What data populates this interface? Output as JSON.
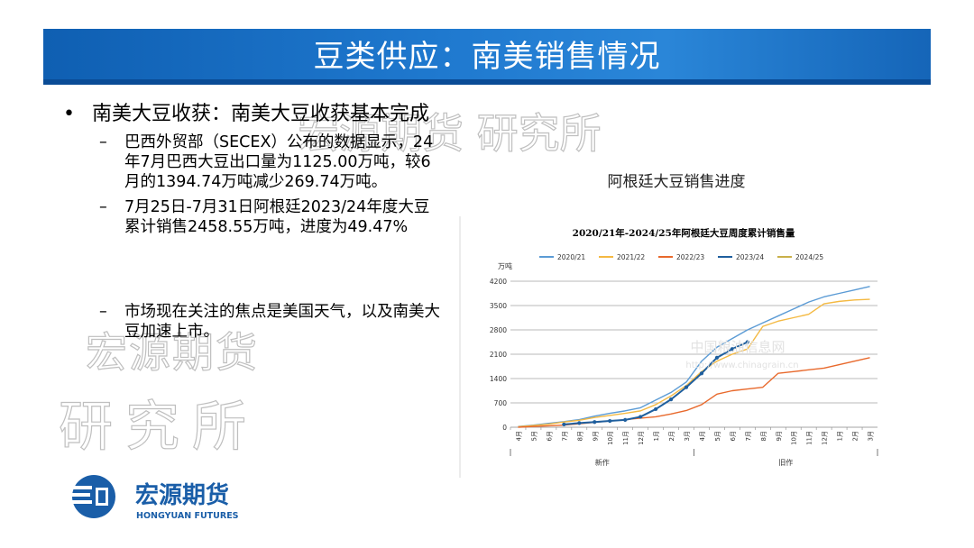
{
  "slide": {
    "title": "豆类供应：南美销售情况",
    "bullets": [
      {
        "marker": "•",
        "text": "南美大豆收获：南美大豆收获基本完成"
      },
      {
        "marker": "–",
        "text": "巴西外贸部（SECEX）公布的数据显示，24年7月巴西大豆出口量为1125.00万吨，较6月的1394.74万吨减少269.74万吨。"
      },
      {
        "marker": "–",
        "text": "7月25日-7月31日阿根廷2023/24年度大豆累计销售2458.55万吨，进度为49.47%"
      },
      {
        "marker": "–",
        "text": "市场现在关注的焦点是美国天气，以及南美大豆加速上市。"
      }
    ],
    "chart_caption": "阿根廷大豆销售进度"
  },
  "watermarks": {
    "top": "宏源期货 研究所",
    "left_line1": "宏源期货",
    "left_line2": "研究所",
    "chart_brand": "中国粮油信息网",
    "chart_url": "http://www.chinagrain.cn"
  },
  "logo": {
    "cn": "宏源期货",
    "en": "HONGYUAN FUTURES",
    "color": "#1a5ea8"
  },
  "chart_data": {
    "type": "line",
    "title": "2020/21年-2024/25年阿根廷大豆周度累计销售量",
    "ylabel": "万吨",
    "ylim": [
      0,
      4200
    ],
    "yticks": [
      0,
      700,
      1400,
      2100,
      2800,
      3500,
      4200
    ],
    "x": [
      "4月",
      "5月",
      "6月",
      "7月",
      "8月",
      "9月",
      "10月",
      "11月",
      "12月",
      "1月",
      "2月",
      "3月",
      "4月",
      "5月",
      "6月",
      "7月",
      "8月",
      "9月",
      "10月",
      "11月",
      "12月",
      "1月",
      "2月",
      "3月"
    ],
    "x_groups": [
      {
        "label": "新作"
      },
      {
        "label": "旧作"
      }
    ],
    "grid": true,
    "legend_position": "top",
    "series": [
      {
        "name": "2020/21",
        "color": "#5b9bd5",
        "values": [
          20,
          60,
          110,
          160,
          220,
          320,
          400,
          470,
          560,
          780,
          1000,
          1300,
          1900,
          2300,
          2550,
          2800,
          3000,
          3200,
          3400,
          3600,
          3750,
          3850,
          3950,
          4050
        ]
      },
      {
        "name": "2021/22",
        "color": "#f4b942",
        "values": [
          15,
          50,
          90,
          150,
          200,
          280,
          340,
          400,
          470,
          650,
          900,
          1200,
          1600,
          1900,
          2100,
          2250,
          2900,
          3050,
          3150,
          3250,
          3550,
          3620,
          3660,
          3680
        ]
      },
      {
        "name": "2022/23",
        "color": "#e8692c",
        "values": [
          0,
          20,
          40,
          60,
          100,
          140,
          180,
          220,
          260,
          300,
          380,
          480,
          650,
          950,
          1050,
          1100,
          1150,
          1550,
          1600,
          1650,
          1700,
          1800,
          1900,
          2000
        ]
      },
      {
        "name": "2023/24",
        "color": "#1f5f9e",
        "values": [
          null,
          null,
          null,
          80,
          120,
          150,
          180,
          210,
          300,
          520,
          800,
          1150,
          1550,
          2000,
          2250,
          2450,
          null,
          null,
          null,
          null,
          null,
          null,
          null,
          null
        ]
      },
      {
        "name": "2024/25",
        "color": "#c9b04a",
        "values": [
          null,
          null,
          null,
          null,
          null,
          null,
          null,
          null,
          null,
          null,
          null,
          null,
          null,
          null,
          null,
          null,
          null,
          null,
          null,
          null,
          null,
          null,
          null,
          null
        ]
      }
    ]
  }
}
